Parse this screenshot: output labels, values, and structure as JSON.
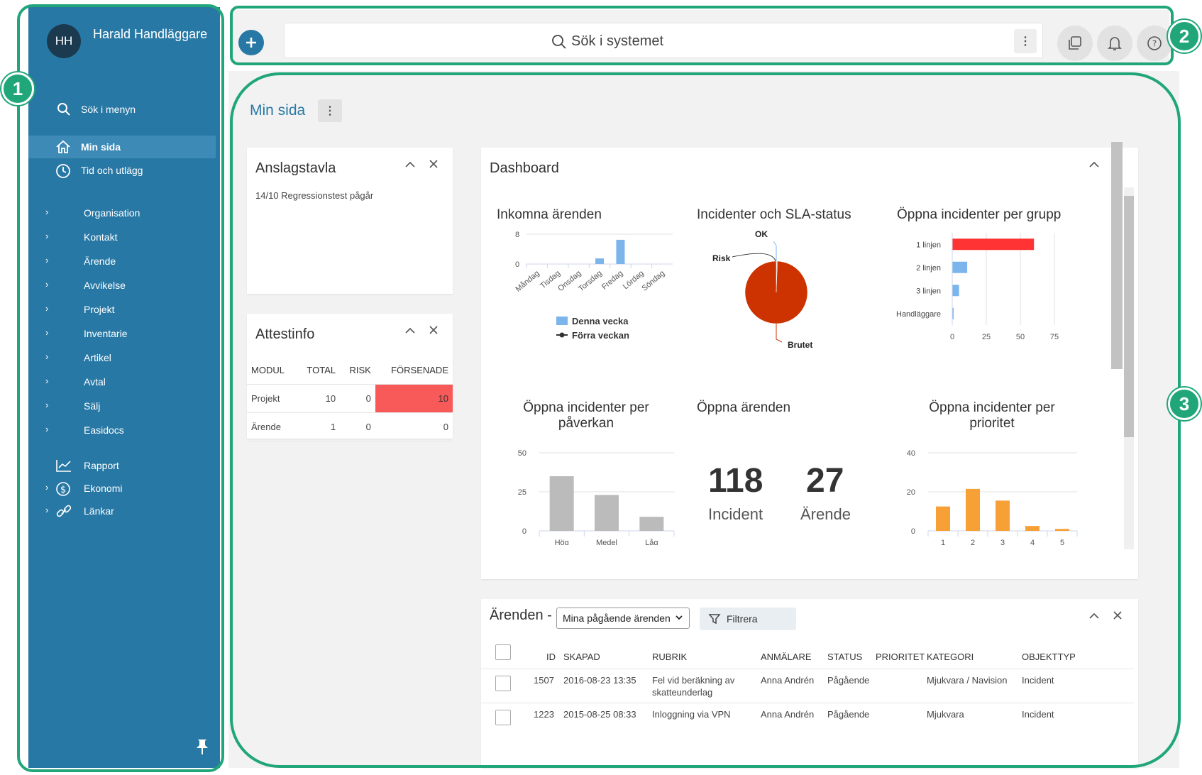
{
  "user": {
    "initials": "HH",
    "name": "Harald Handläggare"
  },
  "sidebar": {
    "search_label": "Sök i menyn",
    "items": [
      {
        "label": "Min sida",
        "icon": "home-icon"
      },
      {
        "label": "Tid och utlägg",
        "icon": "clock-icon"
      },
      {
        "label": "Organisation"
      },
      {
        "label": "Kontakt"
      },
      {
        "label": "Ärende"
      },
      {
        "label": "Avvikelse"
      },
      {
        "label": "Projekt"
      },
      {
        "label": "Inventarie"
      },
      {
        "label": "Artikel"
      },
      {
        "label": "Avtal"
      },
      {
        "label": "Sälj"
      },
      {
        "label": "Easidocs"
      },
      {
        "label": "Rapport",
        "icon": "chart-icon"
      },
      {
        "label": "Ekonomi",
        "icon": "dollar-icon"
      },
      {
        "label": "Länkar",
        "icon": "link-icon"
      }
    ]
  },
  "badges": [
    "1",
    "2",
    "3"
  ],
  "topbar": {
    "search_placeholder": "Sök i systemet"
  },
  "page": {
    "title": "Min sida"
  },
  "anslagstavla": {
    "title": "Anslagstavla",
    "text": "14/10 Regressionstest pågår"
  },
  "attestinfo": {
    "title": "Attestinfo",
    "headers": [
      "MODUL",
      "TOTAL",
      "RISK",
      "FÖRSENADE"
    ],
    "rows": [
      [
        "Projekt",
        "10",
        "0",
        "10"
      ],
      [
        "Ärende",
        "1",
        "0",
        "0"
      ]
    ]
  },
  "dashboard": {
    "title": "Dashboard",
    "oppna_arenden": {
      "title": "Öppna ärenden",
      "incident_value": "118",
      "incident_label": "Incident",
      "arende_value": "27",
      "arende_label": "Ärende"
    }
  },
  "chart_data": [
    {
      "type": "bar",
      "title": "Inkomna ärenden",
      "categories": [
        "Måndag",
        "Tisdag",
        "Onsdag",
        "Torsdag",
        "Fredag",
        "Lördag",
        "Söndag"
      ],
      "series": [
        {
          "name": "Denna vecka",
          "values": [
            0,
            0,
            0,
            1.5,
            6.5,
            0,
            0
          ],
          "color": "#7cb5ec"
        },
        {
          "name": "Förra veckan",
          "values": [
            0,
            0,
            0,
            0,
            0,
            0,
            0
          ],
          "color": "#333333"
        }
      ],
      "ylim": [
        0,
        8
      ],
      "yticks": [
        0,
        8
      ]
    },
    {
      "type": "pie",
      "title": "Incidenter och SLA-status",
      "labels": [
        "OK",
        "Risk",
        "Brutet"
      ],
      "values": [
        0.3,
        0.3,
        99.4
      ],
      "colors": [
        "#7cb5ec",
        "#333333",
        "#cc3300"
      ]
    },
    {
      "type": "bar",
      "orientation": "horizontal",
      "title": "Öppna incidenter per grupp",
      "categories": [
        "1 linjen",
        "2 linjen",
        "3 linjen",
        "Handläggare"
      ],
      "values": [
        60,
        11,
        5,
        1
      ],
      "colors": [
        "#f33",
        "#7cb5ec",
        "#7cb5ec",
        "#7cb5ec"
      ],
      "xlim": [
        0,
        75
      ],
      "xticks": [
        0,
        25,
        50,
        75
      ]
    },
    {
      "type": "bar",
      "title": "Öppna incidenter per påverkan",
      "categories": [
        "Hög",
        "Medel",
        "Låg"
      ],
      "values": [
        35,
        23,
        9
      ],
      "color": "#bbbbbb",
      "ylim": [
        0,
        50
      ],
      "yticks": [
        0,
        25,
        50
      ]
    },
    {
      "type": "bar",
      "title": "Öppna incidenter per prioritet",
      "categories": [
        "1",
        "2",
        "3",
        "4",
        "5"
      ],
      "values": [
        12.5,
        21.5,
        15.5,
        2.5,
        1
      ],
      "color": "#f7a035",
      "ylim": [
        0,
        40
      ],
      "yticks": [
        0,
        20,
        40
      ]
    }
  ],
  "arenden": {
    "title": "Ärenden -",
    "select_value": "Mina pågående ärenden",
    "filter_label": "Filtrera",
    "headers": [
      "ID",
      "SKAPAD",
      "RUBRIK",
      "ANMÄLARE",
      "STATUS",
      "PRIORITET",
      "KATEGORI",
      "OBJEKTTYP"
    ],
    "rows": [
      {
        "id": "1507",
        "skapad": "2016-08-23 13:35",
        "rubrik": "Fel vid beräkning av skatteunderlag",
        "anmalare": "Anna Andrén",
        "status": "Pågående",
        "prioritet": "",
        "kategori": "Mjukvara / Navision",
        "objekttyp": "Incident"
      },
      {
        "id": "1223",
        "skapad": "2015-08-25 08:33",
        "rubrik": "Inloggning via VPN",
        "anmalare": "Anna Andrén",
        "status": "Pågående",
        "prioritet": "",
        "kategori": "Mjukvara",
        "objekttyp": "Incident"
      }
    ]
  }
}
